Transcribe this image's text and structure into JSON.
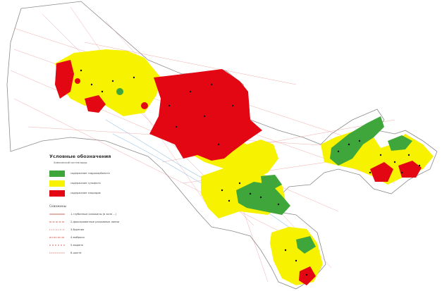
{
  "legend": {
    "title": "Условные обозначения",
    "subtitle": "Химический состав воды",
    "items": [
      {
        "label": "содержание гидрокарбоната",
        "color": "#3ea63a"
      },
      {
        "label": "содержание сульфата",
        "color": "#f7f200"
      },
      {
        "label": "содержание хлоридов",
        "color": "#e30613"
      }
    ],
    "wells_title": "Скважины",
    "wells": [
      {
        "label": "1-глубинные скважины (в зоне ...)",
        "style": "solid"
      },
      {
        "label": "2-фиксированные разрывные линии",
        "style": "dash"
      },
      {
        "label": "3-бурение",
        "style": "dot"
      },
      {
        "label": "4-выбросы",
        "style": "dashdot"
      },
      {
        "label": "5-выдано",
        "style": "dash2"
      },
      {
        "label": "6-шахта",
        "style": "dot2"
      }
    ]
  },
  "colors": {
    "green": "#3ea63a",
    "yellow": "#f7f200",
    "red": "#e30613",
    "outline": "#8a8a8a"
  }
}
